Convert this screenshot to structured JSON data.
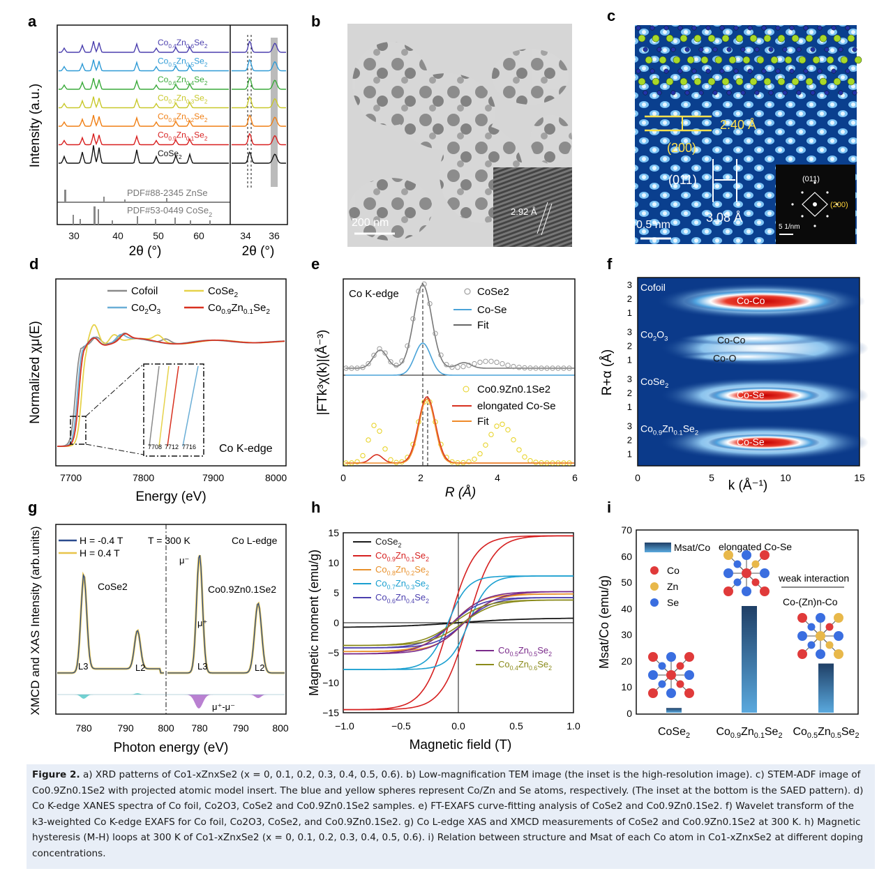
{
  "panel_labels": [
    "a",
    "b",
    "c",
    "d",
    "e",
    "f",
    "g",
    "h",
    "i"
  ],
  "panel_a": {
    "ylabel": "Intensity (a.u.)",
    "xlabel": "2θ (°)",
    "xlabel_zoom": "2θ (°)",
    "xticks": [
      "30",
      "40",
      "50",
      "60"
    ],
    "xticks_zoom": [
      "34",
      "36"
    ],
    "series": [
      {
        "name": "Co0.4Zn0.6Se2",
        "label_html": "Co<tspan baseline-shift=\"sub\" font-size=\"9\">0.4</tspan>Zn<tspan baseline-shift=\"sub\" font-size=\"9\">0.6</tspan>Se<tspan baseline-shift=\"sub\" font-size=\"9\">2</tspan>",
        "color": "#4b3fae"
      },
      {
        "name": "Co0.5Zn0.5Se2",
        "color": "#2f9bd6"
      },
      {
        "name": "Co0.6Zn0.4Se2",
        "color": "#3aaa3a"
      },
      {
        "name": "Co0.7Zn0.3Se2",
        "color": "#c8c82a"
      },
      {
        "name": "Co0.8Zn0.2Se2",
        "color": "#f07f14"
      },
      {
        "name": "Co0.9Zn0.1Se2",
        "color": "#d81f1f"
      },
      {
        "name": "CoSe2",
        "color": "#111111"
      }
    ],
    "ref1": "PDF#88-2345 ZnSe",
    "ref2": "PDF#53-0449 CoSe",
    "ref2_sub": "2"
  },
  "panel_b": {
    "scale": "200 nm",
    "inset_d": "2.92 Å"
  },
  "panel_c": {
    "d1": "2.40 Å",
    "plane1": "(200)",
    "plane2": "(011)",
    "d2": "3.08 Å",
    "scale": "0.5 nm",
    "saed_011": "(011)",
    "saed_200": "(200)",
    "saed_scale": "5 1/nm"
  },
  "panel_d": {
    "xlabel": "Energy (eV)",
    "ylabel": "Normalized χμ(E)",
    "edge": "Co K-edge",
    "xticks": [
      "7700",
      "7800",
      "7900",
      "8000"
    ],
    "inset_ticks": [
      "7708",
      "7712",
      "7716"
    ],
    "legend": [
      "Co foil",
      "CoSe2",
      "Co2O3",
      "Co0.9Zn0.1Se2"
    ],
    "colors": [
      "#8a8a8a",
      "#e6d24a",
      "#6aaed6",
      "#d8301f"
    ]
  },
  "panel_e": {
    "xlabel": "R (Å)",
    "ylabel": "|FTk³χ(k)|(Å⁻³)",
    "edge": "Co K-edge",
    "xticks": [
      "0",
      "2",
      "4",
      "6"
    ],
    "legend_top": [
      "CoSe2",
      "Co-Se",
      "Fit"
    ],
    "legend_bottom": [
      "Co0.9Zn0.1Se2",
      "elongated Co-Se",
      "Fit"
    ]
  },
  "panel_f": {
    "xlabel": "k (Å⁻¹)",
    "ylabel": "R+α (Å)",
    "xticks": [
      "0",
      "5",
      "10",
      "15"
    ],
    "rows": [
      {
        "name": "Co foil",
        "peak": "Co-Co"
      },
      {
        "name": "Co2O3",
        "peak": "Co-Co",
        "peak2": "Co-O"
      },
      {
        "name": "CoSe2",
        "peak": "Co-Se"
      },
      {
        "name": "Co0.9Zn0.1Se2",
        "peak": "Co-Se"
      }
    ],
    "yticks": [
      "3",
      "2",
      "1"
    ]
  },
  "panel_g": {
    "xlabel": "Photon energy (eV)",
    "ylabel": "XMCD and XAS Intensity (arb.units)",
    "legend": [
      "H = -0.4 T",
      "H = 0.4 T"
    ],
    "temp": "T = 300 K",
    "edge": "Co L-edge",
    "left_sample": "CoSe2",
    "right_sample": "Co0.9Zn0.1Se2",
    "l3": "L3",
    "l2": "L2",
    "mu_minus": "μ⁻",
    "mu_plus": "μ⁺",
    "diff": "μ⁺-μ⁻",
    "xticks": [
      "780",
      "790",
      "800",
      "780",
      "790",
      "800"
    ]
  },
  "panel_h": {
    "xlabel": "Magnetic field (T)",
    "ylabel": "Magnetic moment (emu/g)",
    "xticks": [
      "−1.0",
      "−0.5",
      "0.0",
      "0.5",
      "1.0"
    ],
    "yticks": [
      "15",
      "10",
      "5",
      "0",
      "−5",
      "−10",
      "−15"
    ],
    "series": [
      {
        "name": "CoSe2",
        "color": "#1a1a1a",
        "ms": 0.8
      },
      {
        "name": "Co0.9Zn0.1Se2",
        "color": "#d62020",
        "ms": 14.5
      },
      {
        "name": "Co0.8Zn0.2Se2",
        "color": "#e8902a",
        "ms": 4.8
      },
      {
        "name": "Co0.7Zn0.3Se2",
        "color": "#1a9fd0",
        "ms": 7.8
      },
      {
        "name": "Co0.6Zn0.4Se2",
        "color": "#4b3fae",
        "ms": 4.2
      },
      {
        "name": "Co0.5Zn0.5Se2",
        "color": "#7a2a8a",
        "ms": 5.2
      },
      {
        "name": "Co0.4Zn0.6Se2",
        "color": "#8a8a1a",
        "ms": 3.8
      }
    ]
  },
  "panel_i": {
    "ylabel": "Msat/Co (emu/g)",
    "legend": "Msat/Co",
    "yticks": [
      "70",
      "60",
      "50",
      "40",
      "30",
      "20",
      "10",
      "0"
    ],
    "categories": [
      "CoSe2",
      "Co0.9Zn0.1Se2",
      "Co0.5Zn0.5Se2"
    ],
    "values": [
      1.8,
      40.8,
      18.8
    ],
    "atoms": [
      "Co",
      "Zn",
      "Se"
    ],
    "elongated": "elongated Co-Se",
    "weak": "weak interaction",
    "chain": "Co-(Zn)n-Co"
  },
  "caption": {
    "fig": "Figure 2.",
    "text": "a) XRD patterns of Co1-xZnxSe2 (x = 0, 0.1, 0.2, 0.3, 0.4, 0.5, 0.6). b) Low-magnification TEM image (the inset is the high-resolution image). c) STEM-ADF image of Co0.9Zn0.1Se2 with projected atomic model insert. The blue and yellow spheres represent Co/Zn and Se atoms, respectively. (The inset at the bottom is the SAED pattern). d) Co K-edge XANES spectra of Co foil, Co2O3, CoSe2 and Co0.9Zn0.1Se2 samples. e) FT-EXAFS curve-fitting analysis of CoSe2 and Co0.9Zn0.1Se2. f) Wavelet transform of the k3-weighted Co K-edge EXAFS for Co foil, Co2O3, CoSe2, and Co0.9Zn0.1Se2. g) Co L-edge XAS and XMCD measurements of CoSe2 and Co0.9Zn0.1Se2 at 300 K. h) Magnetic hysteresis (M-H) loops at 300 K of Co1-xZnxSe2 (x = 0, 0.1, 0.2, 0.3, 0.4, 0.5, 0.6). i) Relation between structure and Msat of each Co atom in Co1-xZnxSe2 at different doping concentrations."
  }
}
